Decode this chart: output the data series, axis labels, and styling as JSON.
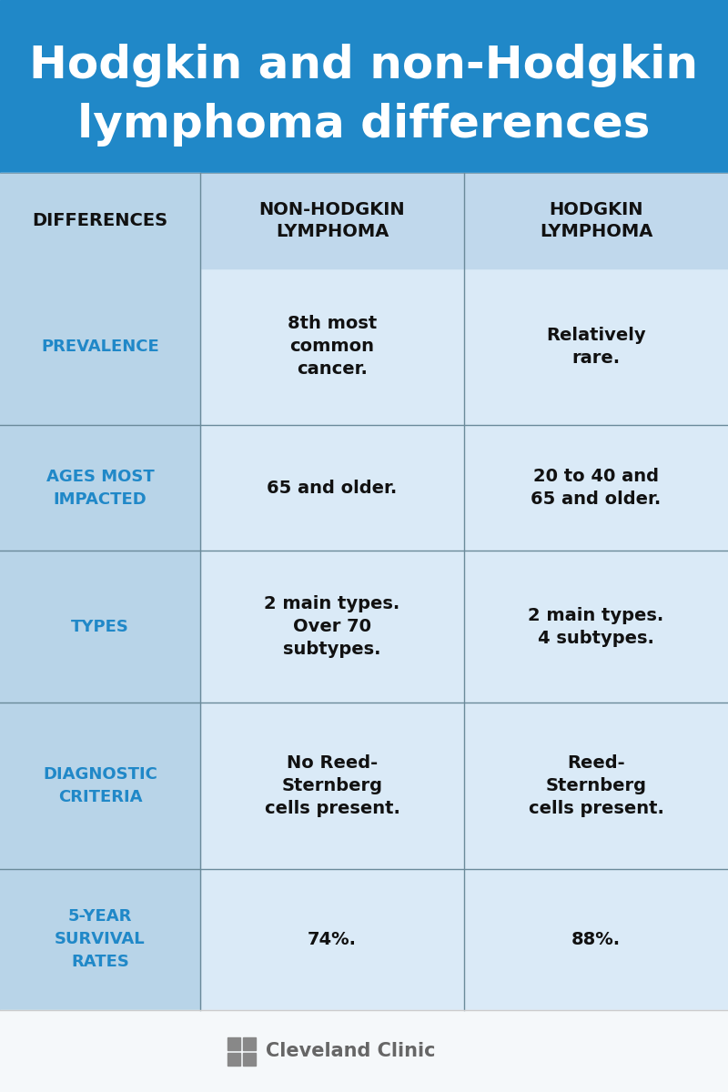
{
  "title_line1": "Hodgkin and non-Hodgkin",
  "title_line2": "lymphoma differences",
  "title_bg": "#2088c8",
  "title_text_color": "#ffffff",
  "header_col1": "DIFFERENCES",
  "header_col2": "NON-HODGKIN\nLYMPHOMA",
  "header_col3": "HODGKIN\nLYMPHOMA",
  "header_text_color": "#111111",
  "col1_label_color": "#2088c8",
  "col2_col3_text_color": "#111111",
  "col1_bg": "#b8d4e8",
  "col23_bg": "#cde0f0",
  "whole_bg": "#daeaf7",
  "header_bg": "#c0d8ec",
  "footer_bg": "#f5f8fa",
  "divider_color": "#6a8a9a",
  "rows": [
    {
      "label": "PREVALENCE",
      "col2": "8th most\ncommon\ncancer.",
      "col3": "Relatively\nrare."
    },
    {
      "label": "AGES MOST\nIMPACTED",
      "col2": "65 and older.",
      "col3": "20 to 40 and\n65 and older."
    },
    {
      "label": "TYPES",
      "col2": "2 main types.\nOver 70\nsubtypes.",
      "col3": "2 main types.\n4 subtypes."
    },
    {
      "label": "DIAGNOSTIC\nCRITERIA",
      "col2": "No Reed-\nSternberg\ncells present.",
      "col3": "Reed-\nSternberg\ncells present."
    },
    {
      "label": "5-YEAR\nSURVIVAL\nRATES",
      "col2": "74%.",
      "col3": "88%."
    }
  ],
  "cleveland_clinic_text": "Cleveland Clinic",
  "cleveland_clinic_color": "#666666",
  "icon_color": "#888888"
}
